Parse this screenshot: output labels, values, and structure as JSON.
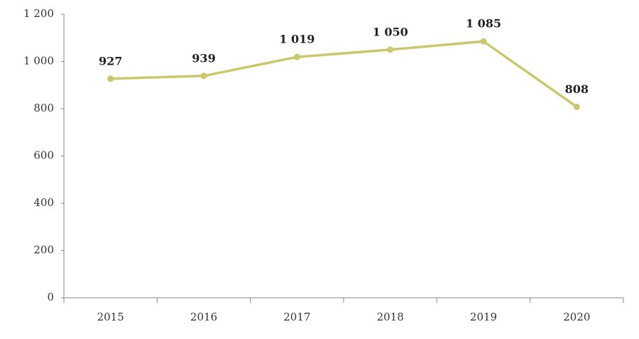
{
  "chart_data": {
    "type": "line",
    "categories": [
      "2015",
      "2016",
      "2017",
      "2018",
      "2019",
      "2020"
    ],
    "values": [
      927,
      939,
      1019,
      1050,
      1085,
      808
    ],
    "value_labels": [
      "927",
      "939",
      "1 019",
      "1 050",
      "1 085",
      "808"
    ],
    "color": "#c9c96b",
    "ylim": [
      0,
      1200
    ],
    "yticks": [
      0,
      200,
      400,
      600,
      800,
      {
        "value": 1000,
        "label": "1 000"
      },
      {
        "value": 1200,
        "label": "1 200"
      }
    ],
    "grid": false
  }
}
